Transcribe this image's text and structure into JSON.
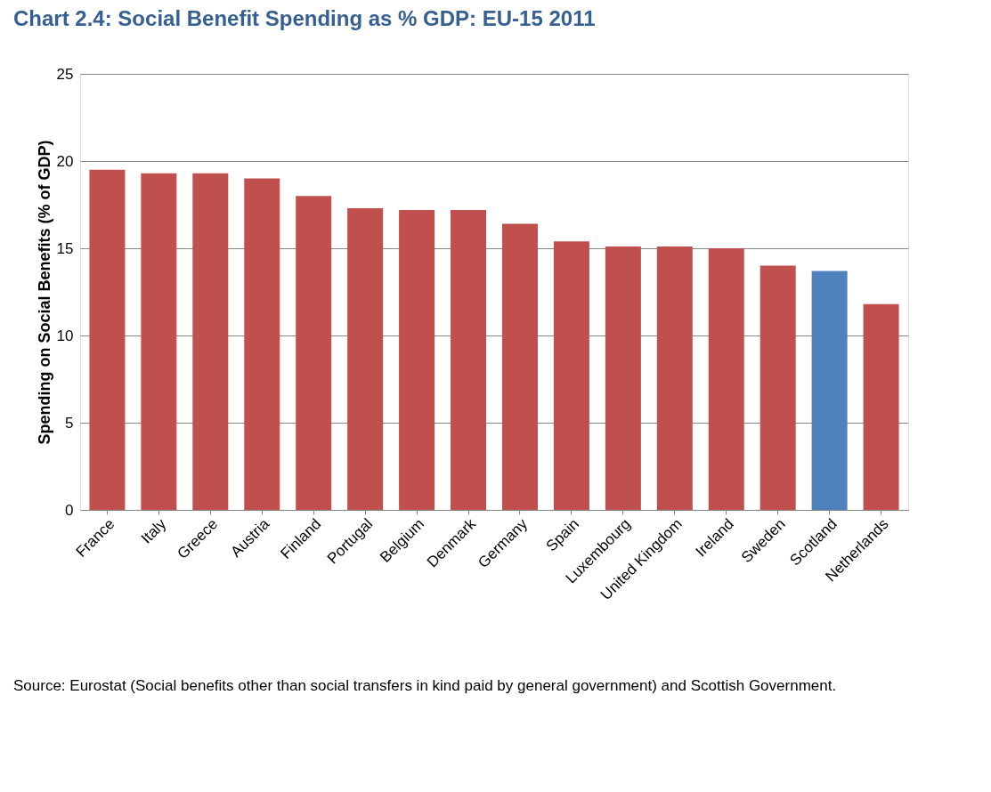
{
  "chart_data": {
    "type": "bar",
    "title": "Chart 2.4: Social Benefit Spending as % GDP: EU-15 2011",
    "ylabel": "Spending on Social Benefits (% of GDP)",
    "categories": [
      "France",
      "Italy",
      "Greece",
      "Austria",
      "Finland",
      "Portugal",
      "Belgium",
      "Denmark",
      "Germany",
      "Spain",
      "Luxembourg",
      "United Kingdom",
      "Ireland",
      "Sweden",
      "Scotland",
      "Netherlands"
    ],
    "values": [
      19.5,
      19.3,
      19.3,
      19.0,
      18.0,
      17.3,
      17.2,
      17.2,
      16.4,
      15.4,
      15.1,
      15.1,
      15.0,
      14.0,
      13.7,
      11.8
    ],
    "colors": [
      "#c0504d",
      "#c0504d",
      "#c0504d",
      "#c0504d",
      "#c0504d",
      "#c0504d",
      "#c0504d",
      "#c0504d",
      "#c0504d",
      "#c0504d",
      "#c0504d",
      "#c0504d",
      "#c0504d",
      "#c0504d",
      "#4f81bd",
      "#c0504d"
    ],
    "ylim": [
      0,
      25
    ],
    "yticks": [
      0,
      5,
      10,
      15,
      20,
      25
    ],
    "grid": "y",
    "annotations": [
      "Source: Eurostat (Social benefits other than social transfers in kind paid by general government) and Scottish Government."
    ]
  }
}
